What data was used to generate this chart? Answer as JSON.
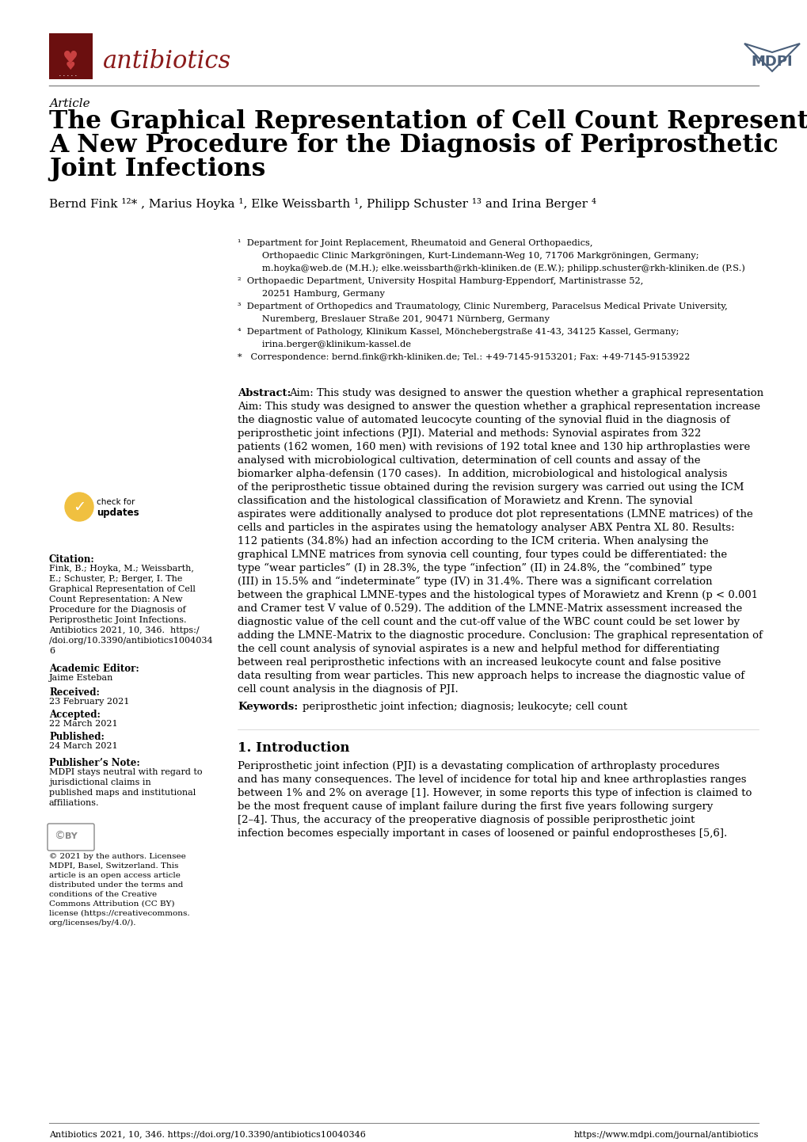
{
  "page_bg": "#ffffff",
  "header_line_color": "#888888",
  "footer_line_color": "#888888",
  "journal_name": "antibiotics",
  "journal_color": "#8b1a1a",
  "mdpi_color": "#4a5f7a",
  "article_label": "Article",
  "title_line1": "The Graphical Representation of Cell Count Representation:",
  "title_line2": "A New Procedure for the Diagnosis of Periprosthetic",
  "title_line3": "Joint Infections",
  "authors": "Bernd Fink ¹²* , Marius Hoyka ¹, Elke Weissbarth ¹, Philipp Schuster ¹³ and Irina Berger ⁴",
  "affil1": "¹  Department for Joint Replacement, Rheumatoid and General Orthopaedics,\n    Orthopaedic Clinic Markgröningen, Kurt-Lindemann-Weg 10, 71706 Markgröningen, Germany;\n    m.hoyka@web.de (M.H.); elke.weissbarth@rkh-kliniken.de (E.W.); philipp.schuster@rkh-kliniken.de (P.S.)",
  "affil2": "²  Orthopaedic Department, University Hospital Hamburg-Eppendorf, Martinistrasse 52,\n    20251 Hamburg, Germany",
  "affil3": "³  Department of Orthopedics and Traumatology, Clinic Nuremberg, Paracelsus Medical Private University,\n    Nuremberg, Breslauer Straße 201, 90471 Nürnberg, Germany",
  "affil4": "⁴  Department of Pathology, Klinikum Kassel, Mönchebergstraße 41-43, 34125 Kassel, Germany;\n    irina.berger@klinikum-kassel.de",
  "affil_star": "*   Correspondence: bernd.fink@rkh-kliniken.de; Tel.: +49-7145-9153201; Fax: +49-7145-9153922",
  "abstract_label": "Abstract:",
  "abstract_text": "Aim: This study was designed to answer the question whether a graphical representation increase the diagnostic value of automated leucocyte counting of the synovial fluid in the diagnosis of periprosthetic joint infections (PJI). Material and methods: Synovial aspirates from 322 patients (162 women, 160 men) with revisions of 192 total knee and 130 hip arthroplasties were analysed with microbiological cultivation, determination of cell counts and assay of the biomarker alpha-defensin (170 cases).  In addition, microbiological and histological analysis of the periprosthetic tissue obtained during the revision surgery was carried out using the ICM classification and the histological classification of Morawietz and Krenn. The synovial aspirates were additionally analysed to produce dot plot representations (LMNE matrices) of the cells and particles in the aspirates using the hematology analyser ABX Pentra XL 80. Results: 112 patients (34.8%) had an infection according to the ICM criteria. When analysing the graphical LMNE matrices from synovia cell counting, four types could be differentiated: the type “wear particles” (I) in 28.3%, the type “infection” (II) in 24.8%, the “combined” type (III) in 15.5% and “indeterminate” type (IV) in 31.4%. There was a significant correlation between the graphical LMNE-types and the histological types of Morawietz and Krenn (p < 0.001 and Cramer test V value of 0.529). The addition of the LMNE-Matrix assessment increased the diagnostic value of the cell count and the cut-off value of the WBC count could be set lower by adding the LMNE-Matrix to the diagnostic procedure. Conclusion: The graphical representation of the cell count analysis of synovial aspirates is a new and helpful method for differentiating between real periprosthetic infections with an increased leukocyte count and false positive data resulting from wear particles. This new approach helps to increase the diagnostic value of cell count analysis in the diagnosis of PJI.",
  "keywords_label": "Keywords:",
  "keywords_text": "periprosthetic joint infection; diagnosis; leukocyte; cell count",
  "intro_heading": "1. Introduction",
  "intro_text": "Periprosthetic joint infection (PJI) is a devastating complication of arthroplasty procedures and has many consequences. The level of incidence for total hip and knee arthroplasties ranges between 1% and 2% on average [1]. However, in some reports this type of infection is claimed to be the most frequent cause of implant failure during the first five years following surgery [2–4]. Thus, the accuracy of the preoperative diagnosis of possible periprosthetic joint infection becomes especially important in cases of loosened or painful endoprostheses [5,6].",
  "citation_label": "Citation:",
  "citation_text": "Fink, B.; Hoyka, M.; Weissbarth, E.; Schuster, P.; Berger, I. The Graphical Representation of Cell Count Representation: A New Procedure for the Diagnosis of Periprosthetic Joint Infections. Antibiotics 2021, 10, 346.  https://doi.org/10.3390/antibiotics10040346",
  "academic_editor_label": "Academic Editor:",
  "academic_editor_text": "Jaime Esteban",
  "received_label": "Received:",
  "received_text": "23 February 2021",
  "accepted_label": "Accepted:",
  "accepted_text": "22 March 2021",
  "published_label": "Published:",
  "published_text": "24 March 2021",
  "publishers_note_label": "Publisher’s Note:",
  "publishers_note_text": "MDPI stays neutral with regard to jurisdictional claims in published maps and institutional affiliations.",
  "copyright_text": "© 2021 by the authors. Licensee MDPI, Basel, Switzerland. This article is an open access article distributed under the terms and conditions of the Creative Commons Attribution (CC BY) license (https://creativecommons.org/licenses/by/4.0/).",
  "footer_text_left": "Antibiotics 2021, 10, 346. https://doi.org/10.3390/antibiotics10040346",
  "footer_text_right": "https://www.mdpi.com/journal/antibiotics"
}
